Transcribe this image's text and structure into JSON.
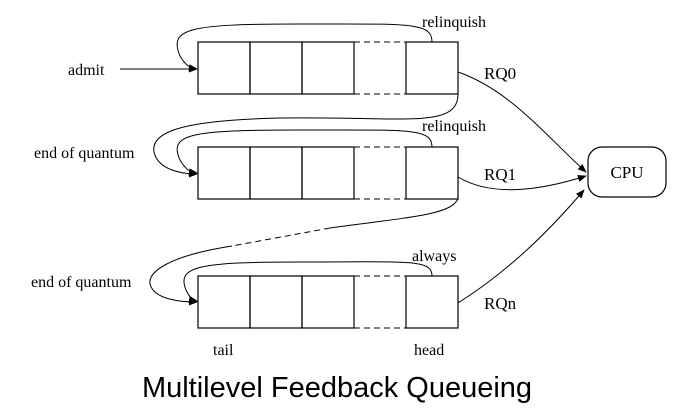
{
  "title": "Multilevel Feedback Queueing",
  "labels": {
    "admit": "admit",
    "relinquish_rq0": "relinquish",
    "relinquish_rq1": "relinquish",
    "always": "always",
    "end_of_quantum_rq1": "end of quantum",
    "end_of_quantum_rqn": "end of quantum",
    "tail": "tail",
    "head": "head"
  },
  "queues": [
    {
      "name": "RQ0"
    },
    {
      "name": "RQ1"
    },
    {
      "name": "RQn"
    }
  ],
  "cpu": {
    "label": "CPU"
  }
}
